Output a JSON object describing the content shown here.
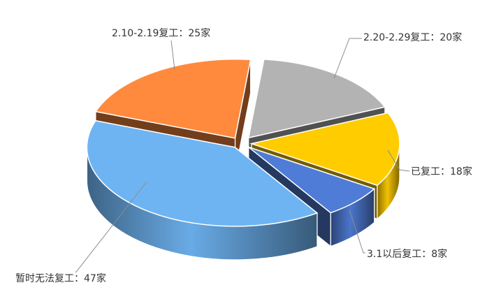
{
  "chart_data": {
    "type": "pie",
    "style": "3d-exploded",
    "legend": "none",
    "slices": [
      {
        "label": "已复工",
        "value": 18,
        "unit": "家",
        "color": "#FFCC00",
        "text": "已复工：18家"
      },
      {
        "label": "3.1以后复工",
        "value": 8,
        "unit": "家",
        "color": "#4F7CD6",
        "text": "3.1以后复工：8家"
      },
      {
        "label": "暂时无法复工",
        "value": 47,
        "unit": "家",
        "color": "#6EB4F2",
        "text": "暂时无法复工：47家"
      },
      {
        "label": "2.10-2.19复工",
        "value": 25,
        "unit": "家",
        "color": "#FF8A3D",
        "text": "2.10-2.19复工：25家"
      },
      {
        "label": "2.20-2.29复工",
        "value": 20,
        "unit": "家",
        "color": "#B3B3B3",
        "text": "2.20-2.29复工：20家"
      }
    ]
  }
}
